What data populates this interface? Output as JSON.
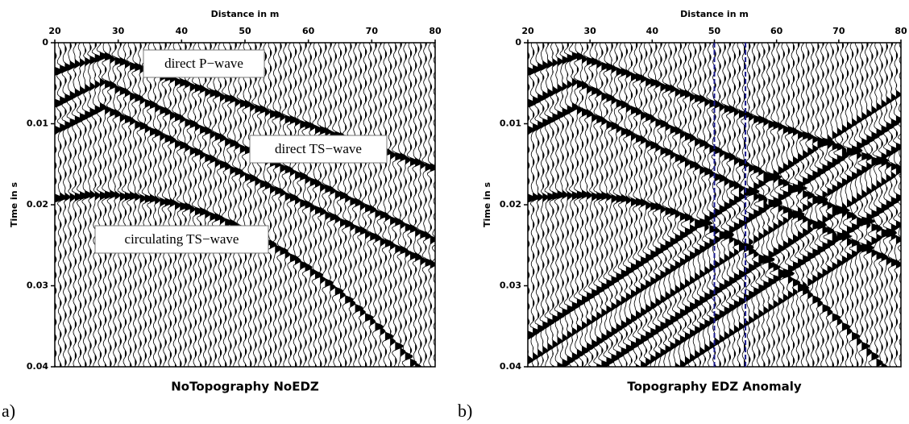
{
  "chart_data": [
    {
      "type": "wiggle",
      "title": "NoTopography NoEDZ",
      "panel_label": "a)",
      "x_label": "Distance in m",
      "y_label": "Time in s",
      "xlim": [
        20,
        80
      ],
      "xticks": [
        20,
        30,
        40,
        50,
        60,
        70,
        80
      ],
      "ylim": [
        0,
        0.04
      ],
      "yticks": [
        0,
        0.01,
        0.02,
        0.03,
        0.04
      ],
      "y_inverted": true,
      "annotations": [
        "direct P−wave",
        "direct TS−wave",
        "circulating TS−wave"
      ]
    },
    {
      "type": "wiggle",
      "title": "Topography EDZ Anomaly",
      "panel_label": "b)",
      "x_label": "Distance in m",
      "y_label": "Time in s",
      "xlim": [
        20,
        80
      ],
      "xticks": [
        20,
        30,
        40,
        50,
        60,
        70,
        80
      ],
      "ylim": [
        0,
        0.04
      ],
      "yticks": [
        0,
        0.01,
        0.02,
        0.03,
        0.04
      ],
      "y_inverted": true,
      "markers": [
        50,
        55
      ],
      "marker_color": "#1a1a8c"
    }
  ]
}
